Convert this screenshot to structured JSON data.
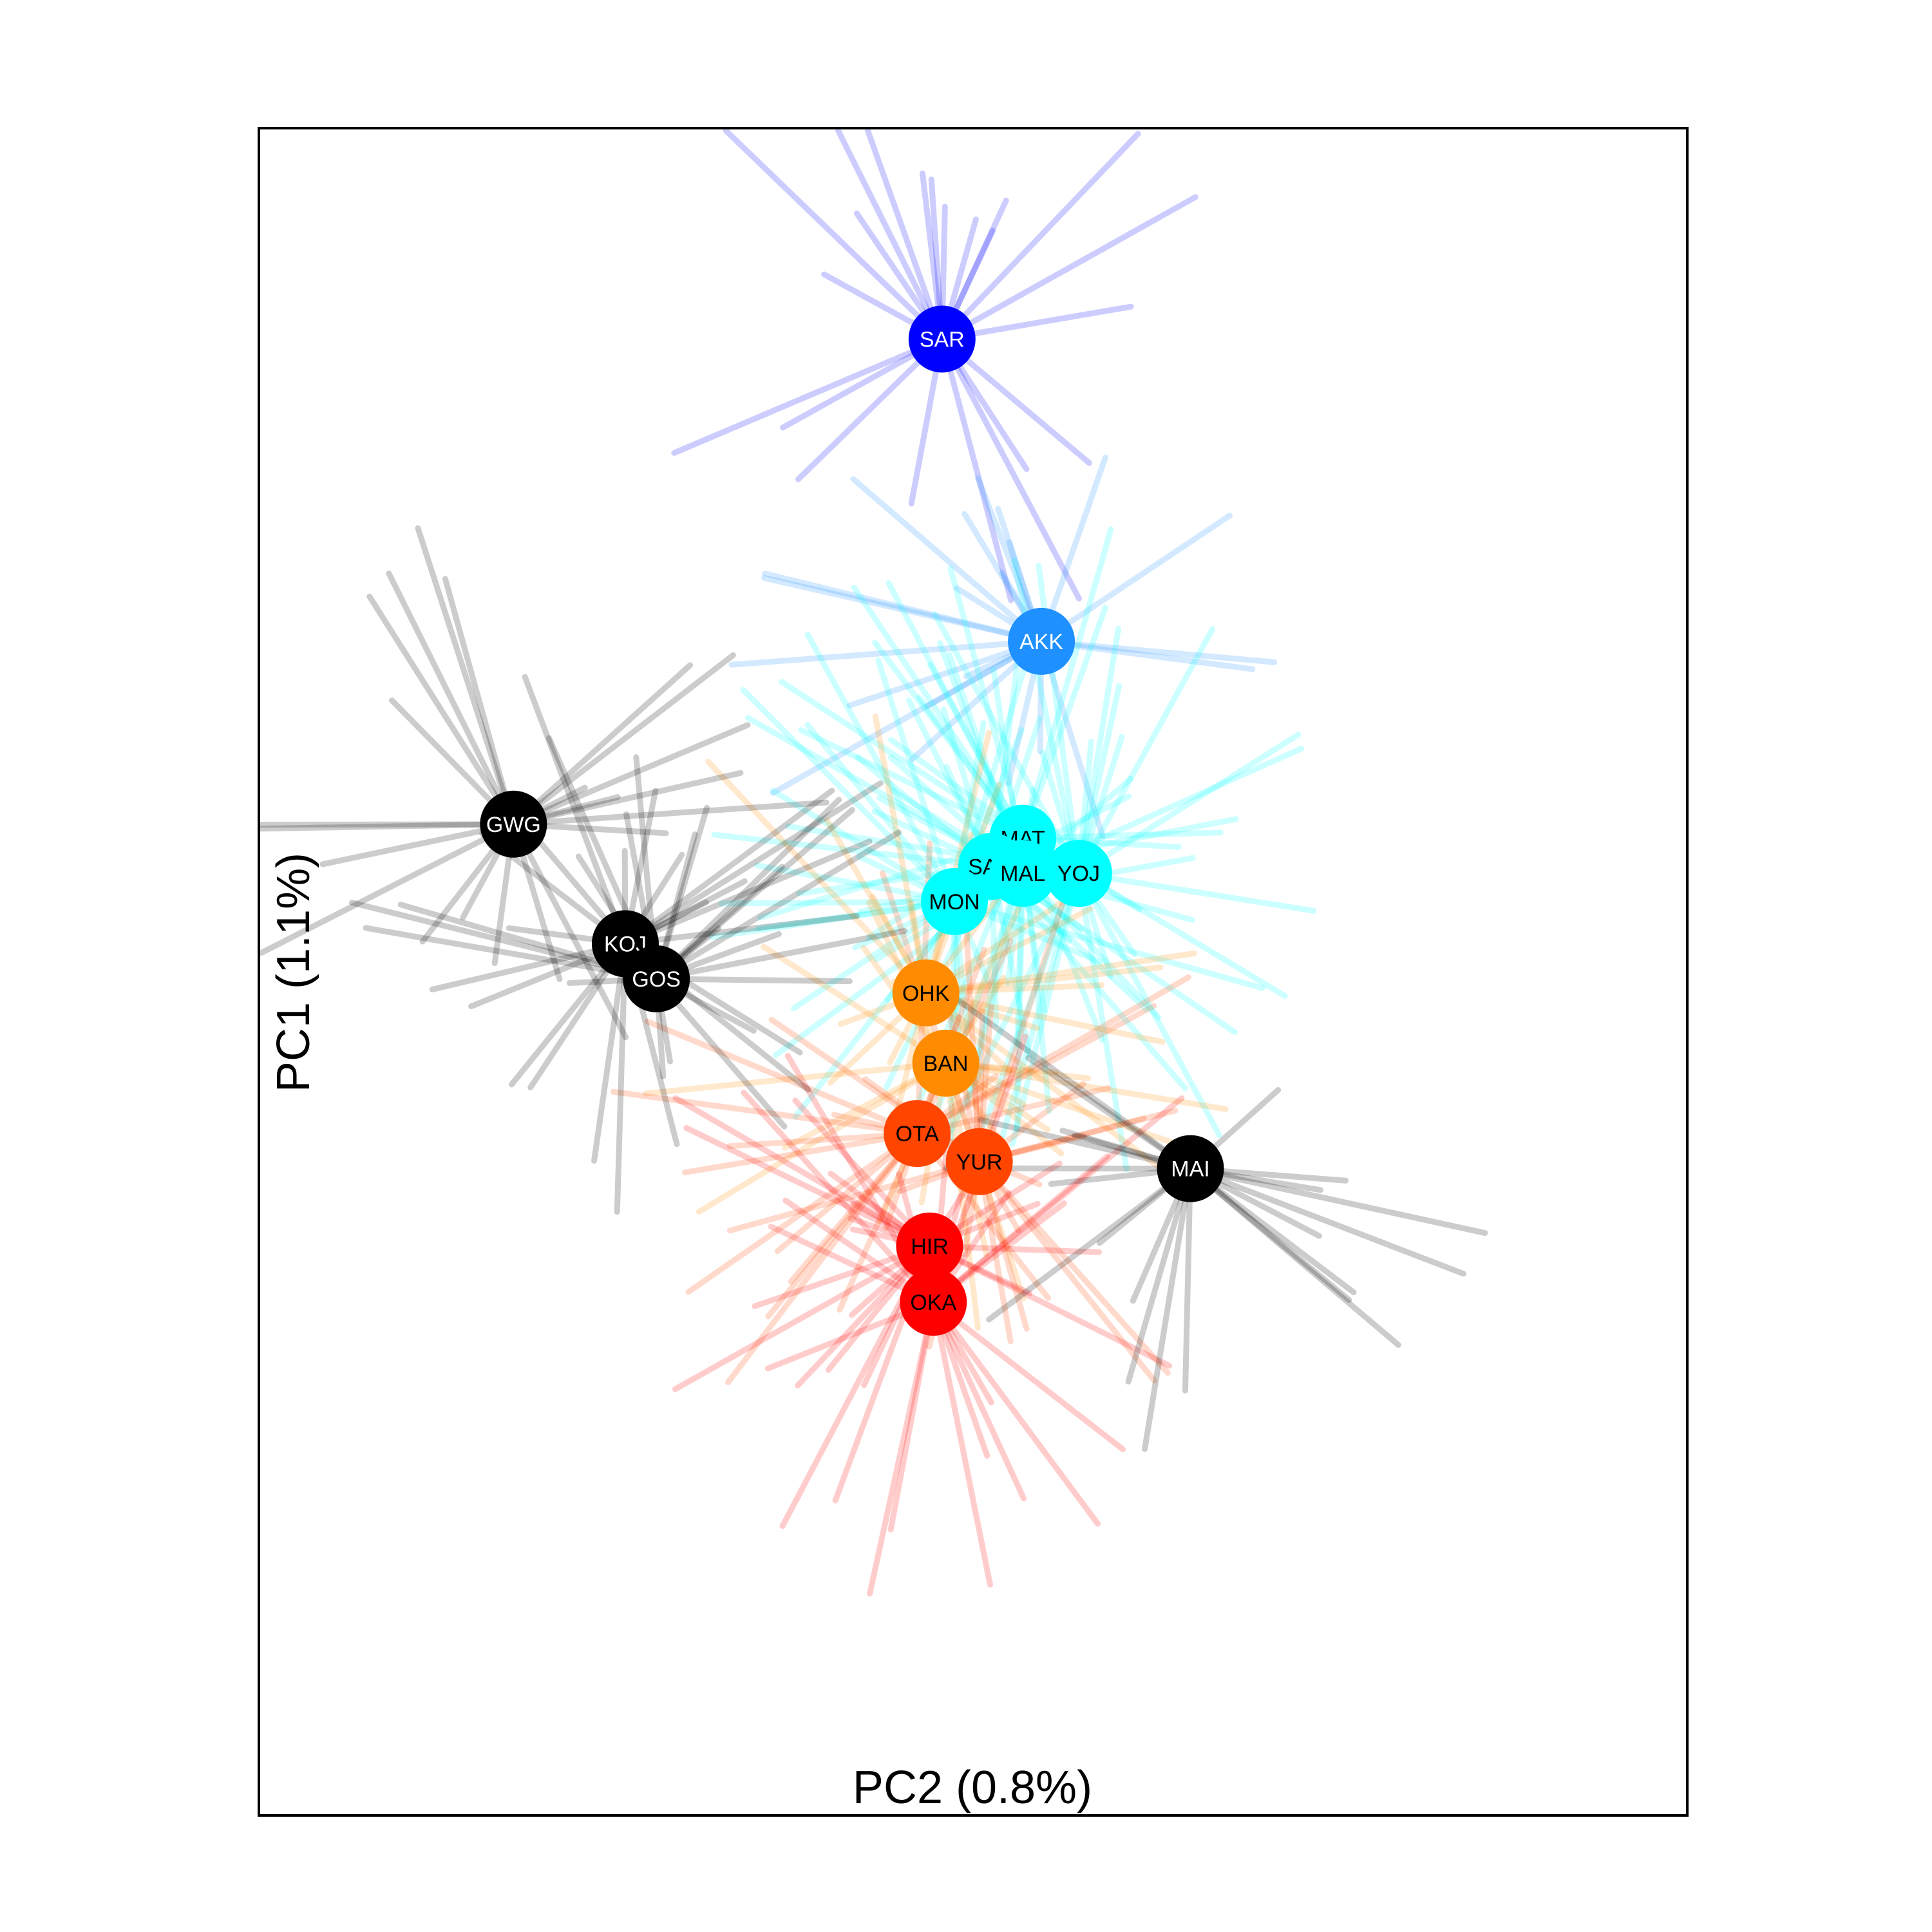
{
  "chart_data": {
    "type": "scatter",
    "title": "",
    "xlabel": "PC2 (0.8%)",
    "ylabel": "PC1 (1.1%)",
    "xlim": [
      -0.55,
      0.6
    ],
    "ylim": [
      -0.65,
      0.55
    ],
    "grid": false,
    "legend": "none",
    "points": [
      {
        "label": "SAR",
        "x": 0.0,
        "y": 0.4,
        "color": "#0000ff",
        "text_color": "#ffffff"
      },
      {
        "label": "AKK",
        "x": 0.08,
        "y": 0.185,
        "color": "#1e90ff",
        "text_color": "#ffffff"
      },
      {
        "label": "MAT",
        "x": 0.065,
        "y": 0.045,
        "color": "#00ffff",
        "text_color": "#000000"
      },
      {
        "label": "SAM",
        "x": 0.04,
        "y": 0.025,
        "color": "#00ffff",
        "text_color": "#000000"
      },
      {
        "label": "MAL",
        "x": 0.065,
        "y": 0.02,
        "color": "#00ffff",
        "text_color": "#000000"
      },
      {
        "label": "YOJ",
        "x": 0.11,
        "y": 0.02,
        "color": "#00ffff",
        "text_color": "#000000"
      },
      {
        "label": "MON",
        "x": 0.01,
        "y": 0.0,
        "color": "#00ffff",
        "text_color": "#000000"
      },
      {
        "label": "OHK",
        "x": -0.013,
        "y": -0.065,
        "color": "#ff8c00",
        "text_color": "#000000"
      },
      {
        "label": "BAN",
        "x": 0.003,
        "y": -0.115,
        "color": "#ff8c00",
        "text_color": "#000000"
      },
      {
        "label": "OTA",
        "x": -0.02,
        "y": -0.165,
        "color": "#ff4500",
        "text_color": "#000000"
      },
      {
        "label": "YUR",
        "x": 0.03,
        "y": -0.185,
        "color": "#ff4500",
        "text_color": "#000000"
      },
      {
        "label": "HIR",
        "x": -0.01,
        "y": -0.245,
        "color": "#ff0000",
        "text_color": "#000000"
      },
      {
        "label": "OKA",
        "x": -0.007,
        "y": -0.285,
        "color": "#ff0000",
        "text_color": "#000000"
      },
      {
        "label": "GWG",
        "x": -0.345,
        "y": 0.055,
        "color": "#000000",
        "text_color": "#ffffff"
      },
      {
        "label": "KOJ",
        "x": -0.255,
        "y": -0.03,
        "color": "#000000",
        "text_color": "#ffffff"
      },
      {
        "label": "GOS",
        "x": -0.23,
        "y": -0.055,
        "color": "#000000",
        "text_color": "#ffffff"
      },
      {
        "label": "MAI",
        "x": 0.2,
        "y": -0.19,
        "color": "#000000",
        "text_color": "#ffffff"
      }
    ]
  }
}
